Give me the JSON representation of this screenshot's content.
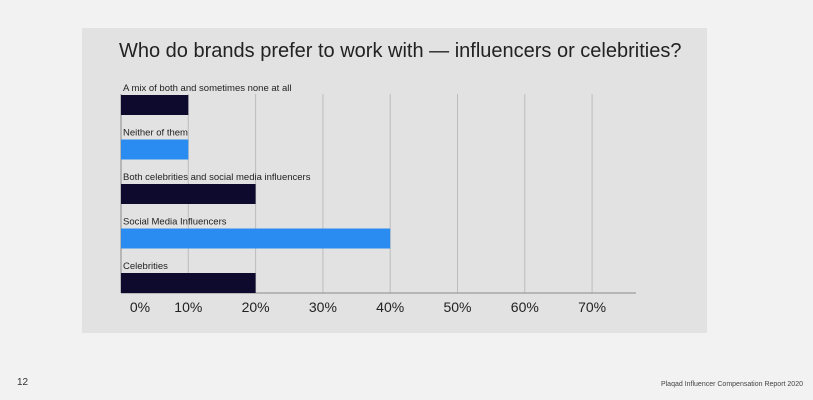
{
  "page": {
    "number": "12",
    "footer": "Plaqad Influencer Compensation Report 2020"
  },
  "chart_data": {
    "type": "bar",
    "orientation": "horizontal",
    "title": "Who do brands prefer to work with — influencers or celebrities?",
    "xlabel": "",
    "ylabel": "",
    "xlim": [
      0,
      80
    ],
    "ticks": [
      "0%",
      "10%",
      "20%",
      "30%",
      "40%",
      "50%",
      "60%",
      "70%"
    ],
    "tick_values": [
      0,
      10,
      20,
      30,
      40,
      50,
      60,
      70
    ],
    "grid": true,
    "legend": "none",
    "categories": [
      "A mix of both and sometimes none at all",
      "Neither of them",
      "Both celebrities and social media influencers",
      "Social Media Influencers",
      "Celebrities"
    ],
    "values": [
      10,
      10,
      20,
      40,
      20
    ],
    "colors": [
      "#0d0a2e",
      "#2a8cf0",
      "#0d0a2e",
      "#2a8cf0",
      "#0d0a2e"
    ],
    "grid_color": "#bdbdbd",
    "axis_color": "#8a8a8a",
    "label_color": "#222222"
  }
}
